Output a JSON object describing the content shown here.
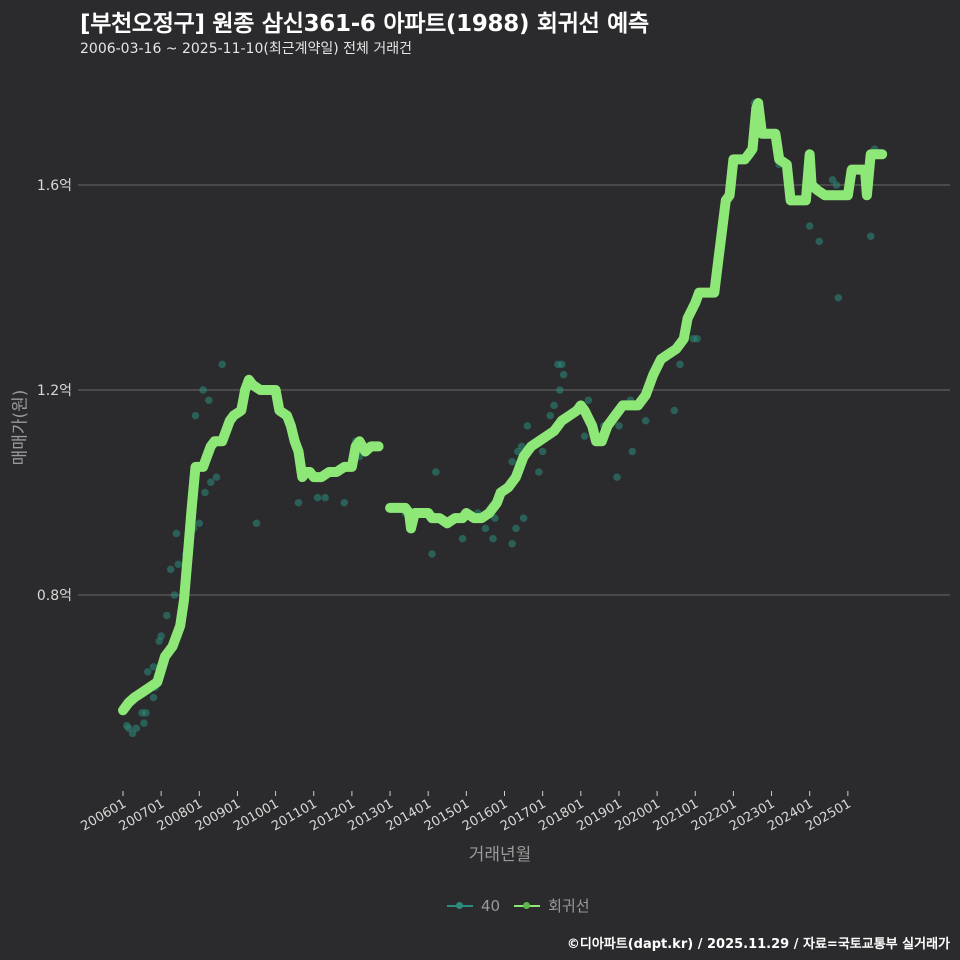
{
  "header": {
    "title": "[부천오정구] 원종 삼신361-6 아파트(1988) 회귀선 예측",
    "subtitle": "2006-03-16 ~ 2025-11-10(최근계약일) 전체 거래건"
  },
  "axes": {
    "ylabel": "매매가(원)",
    "xlabel": "거래년월"
  },
  "legend": {
    "items": [
      {
        "label": "40",
        "color": "#2a8c7e"
      },
      {
        "label": "회귀선",
        "color": "#8ee878"
      }
    ]
  },
  "footer": {
    "credit": "©디아파트(dapt.kr) / 2025.11.29 / 자료=국토교통부 실거래가"
  },
  "colors": {
    "background": "#2b2a2c",
    "grid": "#6a6a6a",
    "line": "#8ee878",
    "scatter": "#2a8c7e"
  },
  "chart_data": {
    "type": "line",
    "title": "[부천오정구] 원종 삼신361-6 아파트(1988) 회귀선 예측",
    "subtitle": "2006-03-16 ~ 2025-11-10(최근계약일) 전체 거래건",
    "xlabel": "거래년월",
    "ylabel": "매매가(원)",
    "y_unit": "억",
    "yticks": [
      0.8,
      1.2,
      1.6
    ],
    "ytick_labels": [
      "0.8억",
      "1.2억",
      "1.6억"
    ],
    "xtick_labels": [
      "200601",
      "200701",
      "200801",
      "200901",
      "201001",
      "201101",
      "201201",
      "201301",
      "201401",
      "201501",
      "201601",
      "201701",
      "201801",
      "201901",
      "202001",
      "202101",
      "202201",
      "202301",
      "202401",
      "202501"
    ],
    "ylim": [
      0.58,
      1.8
    ],
    "grid": "horizontal major only",
    "legend_position": "bottom",
    "series": [
      {
        "name": "회귀선",
        "segments": [
          [
            [
              2006.0,
              0.575
            ],
            [
              2006.15,
              0.59
            ],
            [
              2006.3,
              0.6
            ],
            [
              2006.5,
              0.61
            ],
            [
              2006.7,
              0.62
            ],
            [
              2006.9,
              0.63
            ],
            [
              2007.1,
              0.68
            ],
            [
              2007.3,
              0.7
            ],
            [
              2007.5,
              0.74
            ],
            [
              2007.6,
              0.79
            ],
            [
              2007.7,
              0.88
            ],
            [
              2007.8,
              0.97
            ],
            [
              2007.9,
              1.05
            ],
            [
              2008.1,
              1.05
            ],
            [
              2008.3,
              1.09
            ],
            [
              2008.4,
              1.1
            ],
            [
              2008.6,
              1.1
            ],
            [
              2008.8,
              1.14
            ],
            [
              2008.9,
              1.15
            ],
            [
              2009.1,
              1.16
            ],
            [
              2009.2,
              1.2
            ],
            [
              2009.3,
              1.22
            ],
            [
              2009.4,
              1.21
            ],
            [
              2009.6,
              1.2
            ],
            [
              2009.8,
              1.2
            ],
            [
              2010.0,
              1.2
            ],
            [
              2010.1,
              1.16
            ],
            [
              2010.3,
              1.15
            ],
            [
              2010.4,
              1.13
            ],
            [
              2010.5,
              1.1
            ],
            [
              2010.6,
              1.08
            ],
            [
              2010.7,
              1.03
            ],
            [
              2010.8,
              1.04
            ],
            [
              2010.9,
              1.04
            ],
            [
              2011.0,
              1.03
            ],
            [
              2011.2,
              1.03
            ],
            [
              2011.4,
              1.04
            ],
            [
              2011.6,
              1.04
            ],
            [
              2011.8,
              1.05
            ],
            [
              2012.0,
              1.05
            ],
            [
              2012.1,
              1.09
            ],
            [
              2012.2,
              1.1
            ],
            [
              2012.35,
              1.08
            ],
            [
              2012.5,
              1.09
            ],
            [
              2012.7,
              1.09
            ]
          ],
          [
            [
              2013.0,
              0.97
            ],
            [
              2013.2,
              0.97
            ],
            [
              2013.4,
              0.97
            ],
            [
              2013.5,
              0.96
            ],
            [
              2013.55,
              0.93
            ],
            [
              2013.65,
              0.96
            ],
            [
              2013.8,
              0.96
            ],
            [
              2014.0,
              0.96
            ],
            [
              2014.1,
              0.95
            ],
            [
              2014.3,
              0.95
            ],
            [
              2014.5,
              0.94
            ],
            [
              2014.7,
              0.95
            ],
            [
              2014.9,
              0.95
            ],
            [
              2015.0,
              0.96
            ],
            [
              2015.2,
              0.95
            ],
            [
              2015.4,
              0.95
            ],
            [
              2015.6,
              0.96
            ],
            [
              2015.8,
              0.98
            ],
            [
              2015.9,
              1.0
            ],
            [
              2016.1,
              1.01
            ],
            [
              2016.3,
              1.03
            ],
            [
              2016.5,
              1.07
            ],
            [
              2016.7,
              1.09
            ],
            [
              2016.9,
              1.1
            ],
            [
              2017.1,
              1.11
            ],
            [
              2017.3,
              1.12
            ],
            [
              2017.5,
              1.14
            ],
            [
              2017.7,
              1.15
            ],
            [
              2017.9,
              1.16
            ],
            [
              2018.0,
              1.17
            ],
            [
              2018.1,
              1.16
            ],
            [
              2018.3,
              1.13
            ],
            [
              2018.4,
              1.1
            ],
            [
              2018.55,
              1.1
            ],
            [
              2018.7,
              1.13
            ],
            [
              2018.9,
              1.15
            ],
            [
              2019.1,
              1.17
            ],
            [
              2019.3,
              1.17
            ],
            [
              2019.5,
              1.17
            ],
            [
              2019.7,
              1.19
            ],
            [
              2019.9,
              1.23
            ],
            [
              2020.1,
              1.26
            ],
            [
              2020.3,
              1.27
            ],
            [
              2020.5,
              1.28
            ],
            [
              2020.7,
              1.3
            ],
            [
              2020.8,
              1.34
            ],
            [
              2021.0,
              1.37
            ],
            [
              2021.1,
              1.39
            ],
            [
              2021.3,
              1.39
            ],
            [
              2021.5,
              1.39
            ],
            [
              2021.6,
              1.45
            ],
            [
              2021.8,
              1.57
            ],
            [
              2021.9,
              1.58
            ],
            [
              2022.0,
              1.65
            ],
            [
              2022.3,
              1.65
            ],
            [
              2022.4,
              1.66
            ],
            [
              2022.5,
              1.67
            ],
            [
              2022.6,
              1.75
            ],
            [
              2022.65,
              1.76
            ],
            [
              2022.75,
              1.7
            ],
            [
              2022.9,
              1.7
            ],
            [
              2023.1,
              1.7
            ],
            [
              2023.2,
              1.65
            ],
            [
              2023.4,
              1.64
            ],
            [
              2023.5,
              1.57
            ],
            [
              2023.7,
              1.57
            ],
            [
              2023.9,
              1.57
            ],
            [
              2024.0,
              1.66
            ],
            [
              2024.05,
              1.6
            ],
            [
              2024.2,
              1.59
            ],
            [
              2024.4,
              1.58
            ],
            [
              2024.6,
              1.58
            ],
            [
              2024.8,
              1.58
            ],
            [
              2025.0,
              1.58
            ],
            [
              2025.1,
              1.63
            ],
            [
              2025.3,
              1.63
            ],
            [
              2025.45,
              1.63
            ],
            [
              2025.5,
              1.58
            ],
            [
              2025.6,
              1.66
            ],
            [
              2025.8,
              1.66
            ],
            [
              2025.9,
              1.66
            ]
          ]
        ]
      },
      {
        "name": "40",
        "type": "scatter",
        "points": [
          [
            2006.1,
            0.545
          ],
          [
            2006.15,
            0.54
          ],
          [
            2006.25,
            0.53
          ],
          [
            2006.35,
            0.54
          ],
          [
            2006.55,
            0.55
          ],
          [
            2006.5,
            0.57
          ],
          [
            2006.6,
            0.57
          ],
          [
            2006.8,
            0.6
          ],
          [
            2006.85,
            0.62
          ],
          [
            2006.65,
            0.65
          ],
          [
            2006.8,
            0.66
          ],
          [
            2006.95,
            0.71
          ],
          [
            2007.0,
            0.72
          ],
          [
            2007.15,
            0.76
          ],
          [
            2007.35,
            0.8
          ],
          [
            2007.25,
            0.85
          ],
          [
            2007.45,
            0.86
          ],
          [
            2007.65,
            0.88
          ],
          [
            2007.75,
            0.9
          ],
          [
            2007.85,
            0.93
          ],
          [
            2007.4,
            0.92
          ],
          [
            2008.0,
            0.94
          ],
          [
            2008.15,
            1.0
          ],
          [
            2008.3,
            1.02
          ],
          [
            2008.45,
            1.03
          ],
          [
            2007.9,
            1.15
          ],
          [
            2008.1,
            1.2
          ],
          [
            2008.25,
            1.18
          ],
          [
            2008.6,
            1.25
          ],
          [
            2009.5,
            0.94
          ],
          [
            2010.6,
            0.98
          ],
          [
            2011.1,
            0.99
          ],
          [
            2011.3,
            0.99
          ],
          [
            2011.8,
            0.98
          ],
          [
            2012.2,
            1.07
          ],
          [
            2012.1,
            1.1
          ],
          [
            2013.4,
            0.96
          ],
          [
            2014.1,
            0.88
          ],
          [
            2014.2,
            1.04
          ],
          [
            2014.9,
            0.91
          ],
          [
            2015.3,
            0.96
          ],
          [
            2015.5,
            0.93
          ],
          [
            2015.7,
            0.91
          ],
          [
            2015.75,
            0.95
          ],
          [
            2016.2,
            0.9
          ],
          [
            2016.3,
            0.93
          ],
          [
            2016.5,
            0.95
          ],
          [
            2016.2,
            1.06
          ],
          [
            2016.35,
            1.08
          ],
          [
            2016.45,
            1.09
          ],
          [
            2016.6,
            1.13
          ],
          [
            2016.9,
            1.04
          ],
          [
            2017.0,
            1.08
          ],
          [
            2017.2,
            1.15
          ],
          [
            2017.3,
            1.17
          ],
          [
            2017.4,
            1.25
          ],
          [
            2017.5,
            1.25
          ],
          [
            2017.45,
            1.2
          ],
          [
            2017.55,
            1.23
          ],
          [
            2018.1,
            1.11
          ],
          [
            2018.2,
            1.18
          ],
          [
            2018.45,
            1.1
          ],
          [
            2018.6,
            1.13
          ],
          [
            2018.95,
            1.03
          ],
          [
            2019.0,
            1.13
          ],
          [
            2019.35,
            1.08
          ],
          [
            2019.3,
            1.18
          ],
          [
            2019.7,
            1.14
          ],
          [
            2020.45,
            1.16
          ],
          [
            2020.6,
            1.25
          ],
          [
            2020.95,
            1.3
          ],
          [
            2021.05,
            1.3
          ],
          [
            2022.55,
            1.76
          ],
          [
            2022.7,
            1.71
          ],
          [
            2023.2,
            1.64
          ],
          [
            2024.0,
            1.52
          ],
          [
            2024.25,
            1.49
          ],
          [
            2024.6,
            1.61
          ],
          [
            2024.7,
            1.6
          ],
          [
            2024.75,
            1.38
          ],
          [
            2025.6,
            1.5
          ],
          [
            2025.7,
            1.67
          ]
        ]
      }
    ]
  }
}
